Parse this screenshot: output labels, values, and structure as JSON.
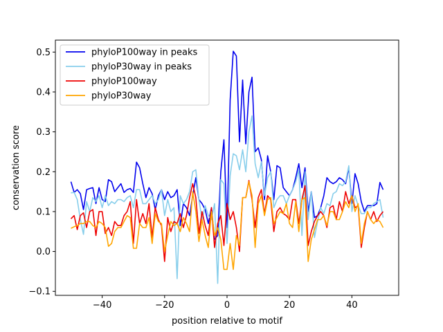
{
  "chart_data": {
    "type": "line",
    "xlabel": "position relative to motif",
    "ylabel": "conservation score",
    "xlim": [
      -55,
      55
    ],
    "ylim": [
      -0.11,
      0.53
    ],
    "xticks": [
      -40,
      -20,
      0,
      20,
      40
    ],
    "yticks": [
      -0.1,
      0.0,
      0.1,
      0.2,
      0.3,
      0.4,
      0.5
    ],
    "ytick_labels": [
      "−0.1",
      "0.0",
      "0.1",
      "0.2",
      "0.3",
      "0.4",
      "0.5"
    ],
    "xtick_labels": [
      "−40",
      "−20",
      "0",
      "20",
      "40"
    ],
    "legend_location": "upper left",
    "grid": false,
    "x": [
      -50,
      -49,
      -48,
      -47,
      -46,
      -45,
      -44,
      -43,
      -42,
      -41,
      -40,
      -39,
      -38,
      -37,
      -36,
      -35,
      -34,
      -33,
      -32,
      -31,
      -30,
      -29,
      -28,
      -27,
      -26,
      -25,
      -24,
      -23,
      -22,
      -21,
      -20,
      -19,
      -18,
      -17,
      -16,
      -15,
      -14,
      -13,
      -12,
      -11,
      -10,
      -9,
      -8,
      -7,
      -6,
      -5,
      -4,
      -3,
      -2,
      -1,
      0,
      1,
      2,
      3,
      4,
      5,
      6,
      7,
      8,
      9,
      10,
      11,
      12,
      13,
      14,
      15,
      16,
      17,
      18,
      19,
      20,
      21,
      22,
      23,
      24,
      25,
      26,
      27,
      28,
      29,
      30,
      31,
      32,
      33,
      34,
      35,
      36,
      37,
      38,
      39,
      40,
      41,
      42,
      43,
      44,
      45,
      46,
      47,
      48,
      49,
      50
    ],
    "series": [
      {
        "name": "phyloP100way in peaks",
        "color": "#0000ee",
        "values": [
          0.175,
          0.148,
          0.155,
          0.145,
          0.105,
          0.155,
          0.158,
          0.16,
          0.12,
          0.16,
          0.13,
          0.125,
          0.18,
          0.175,
          0.15,
          0.16,
          0.17,
          0.148,
          0.155,
          0.158,
          0.148,
          0.224,
          0.21,
          0.17,
          0.135,
          0.16,
          0.145,
          0.105,
          0.14,
          0.155,
          0.13,
          0.15,
          0.135,
          0.14,
          0.155,
          0.065,
          0.12,
          0.11,
          0.09,
          0.14,
          0.185,
          0.13,
          0.12,
          0.105,
          0.07,
          0.11,
          0.03,
          0.04,
          0.2,
          0.28,
          0.06,
          0.38,
          0.502,
          0.49,
          0.275,
          0.43,
          0.27,
          0.4,
          0.437,
          0.25,
          0.26,
          0.23,
          0.13,
          0.24,
          0.2,
          0.13,
          0.215,
          0.21,
          0.16,
          0.15,
          0.14,
          0.155,
          0.185,
          0.22,
          0.16,
          0.21,
          0.1,
          0.15,
          0.085,
          0.09,
          0.11,
          0.14,
          0.185,
          0.175,
          0.17,
          0.175,
          0.185,
          0.18,
          0.17,
          0.21,
          0.12,
          0.195,
          0.17,
          0.125,
          0.1,
          0.115,
          0.115,
          0.115,
          0.12,
          0.173,
          0.155
        ]
      },
      {
        "name": "phyloP30way in peaks",
        "color": "#87ceeb",
        "values": [
          0.147,
          0.148,
          0.13,
          0.08,
          0.043,
          0.125,
          0.1,
          0.135,
          0.125,
          0.14,
          0.11,
          0.14,
          0.115,
          0.125,
          0.12,
          0.13,
          0.13,
          0.125,
          0.135,
          0.14,
          0.11,
          0.155,
          0.155,
          0.12,
          0.12,
          0.13,
          0.14,
          0.12,
          0.13,
          0.155,
          0.09,
          0.13,
          0.1,
          0.11,
          -0.068,
          0.14,
          0.12,
          0.13,
          0.15,
          0.2,
          0.205,
          0.13,
          0.08,
          0.115,
          0.09,
          0.08,
          0.12,
          -0.08,
          0.18,
          0.17,
          0.02,
          0.19,
          0.245,
          0.24,
          0.205,
          0.255,
          0.2,
          0.3,
          0.34,
          0.22,
          0.185,
          0.225,
          0.14,
          0.185,
          0.2,
          0.11,
          0.13,
          0.14,
          0.14,
          0.12,
          0.14,
          0.155,
          0.175,
          0.205,
          0.04,
          0.2,
          0.08,
          0.15,
          0.035,
          0.075,
          0.11,
          0.095,
          0.12,
          0.115,
          0.145,
          0.15,
          0.17,
          0.165,
          0.175,
          0.215,
          0.1,
          0.14,
          0.115,
          0.095,
          0.095,
          0.11,
          0.11,
          0.12,
          0.125,
          0.13,
          0.085
        ]
      },
      {
        "name": "phyloP100way",
        "color": "#ee0000",
        "values": [
          0.082,
          0.09,
          0.055,
          0.09,
          0.097,
          0.06,
          0.1,
          0.105,
          0.04,
          0.1,
          0.1,
          0.045,
          0.06,
          0.04,
          0.075,
          0.065,
          0.065,
          0.09,
          0.1,
          0.125,
          0.02,
          0.13,
          0.07,
          0.095,
          0.07,
          0.12,
          0.035,
          0.11,
          0.08,
          0.065,
          -0.025,
          0.085,
          0.05,
          0.075,
          0.07,
          0.095,
          0.06,
          0.09,
          0.135,
          0.17,
          0.135,
          0.045,
          0.1,
          0.065,
          0.04,
          0.11,
          0.01,
          0.07,
          0.09,
          0.015,
          0.12,
          0.08,
          0.1,
          0.06,
          0.0,
          0.135,
          0.135,
          0.178,
          0.13,
          0.06,
          0.135,
          0.155,
          0.095,
          0.14,
          0.13,
          0.05,
          0.1,
          0.11,
          0.095,
          0.09,
          0.08,
          0.13,
          0.13,
          0.07,
          0.13,
          0.165,
          0.015,
          0.05,
          0.075,
          0.09,
          0.1,
          0.09,
          0.06,
          0.11,
          0.115,
          0.08,
          0.125,
          0.1,
          0.15,
          0.12,
          0.14,
          0.11,
          0.115,
          0.01,
          0.06,
          0.1,
          0.08,
          0.1,
          0.075,
          0.09,
          0.1
        ]
      },
      {
        "name": "phyloP30way",
        "color": "#ffa500",
        "values": [
          0.058,
          0.062,
          0.065,
          0.07,
          0.07,
          0.075,
          0.075,
          0.065,
          0.06,
          0.075,
          0.07,
          0.06,
          0.013,
          0.02,
          0.05,
          0.06,
          0.06,
          0.075,
          0.09,
          0.085,
          0.008,
          0.008,
          0.07,
          0.06,
          0.06,
          0.085,
          0.02,
          0.095,
          0.075,
          0.07,
          0.0,
          0.04,
          0.075,
          0.065,
          0.07,
          0.05,
          0.085,
          0.07,
          0.05,
          0.15,
          0.1,
          0.025,
          0.08,
          0.04,
          0.01,
          0.1,
          0.04,
          0.06,
          0.03,
          -0.045,
          -0.045,
          0.02,
          -0.045,
          0.04,
          0.015,
          0.135,
          0.135,
          0.175,
          0.14,
          0.01,
          0.12,
          0.14,
          0.09,
          0.13,
          0.135,
          0.07,
          0.085,
          0.1,
          0.095,
          0.12,
          0.07,
          0.06,
          0.125,
          0.05,
          0.13,
          0.135,
          -0.025,
          0.03,
          0.055,
          0.08,
          0.08,
          0.09,
          0.065,
          0.1,
          0.1,
          0.08,
          0.08,
          0.1,
          0.125,
          0.11,
          0.14,
          0.1,
          0.12,
          0.02,
          0.07,
          0.1,
          0.08,
          0.07,
          0.08,
          0.075,
          0.06
        ]
      }
    ]
  }
}
